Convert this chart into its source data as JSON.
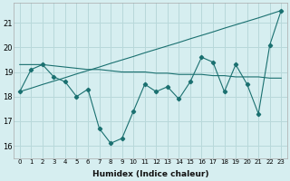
{
  "xlabel": "Humidex (Indice chaleur)",
  "background_color": "#d6eef0",
  "grid_color": "#b8d8da",
  "line_color": "#1a7070",
  "x": [
    0,
    1,
    2,
    3,
    4,
    5,
    6,
    7,
    8,
    9,
    10,
    11,
    12,
    13,
    14,
    15,
    16,
    17,
    18,
    19,
    20,
    21,
    22,
    23
  ],
  "y_main": [
    18.2,
    19.1,
    19.3,
    18.8,
    18.6,
    18.0,
    18.3,
    16.7,
    16.1,
    16.3,
    17.4,
    18.5,
    18.2,
    18.4,
    17.9,
    18.6,
    19.6,
    19.4,
    18.2,
    19.3,
    18.5,
    17.3,
    20.1,
    21.5
  ],
  "y_diagonal": [
    18.2,
    18.34,
    18.49,
    18.63,
    18.77,
    18.92,
    19.06,
    19.2,
    19.35,
    19.49,
    19.63,
    19.78,
    19.92,
    20.06,
    20.2,
    20.35,
    20.49,
    20.63,
    20.78,
    20.92,
    21.06,
    21.2,
    21.35,
    21.5
  ],
  "y_flat": [
    19.3,
    19.3,
    19.3,
    19.25,
    19.2,
    19.15,
    19.1,
    19.1,
    19.05,
    19.0,
    19.0,
    19.0,
    18.95,
    18.95,
    18.9,
    18.9,
    18.9,
    18.85,
    18.85,
    18.8,
    18.8,
    18.8,
    18.75,
    18.75
  ],
  "ylim": [
    15.5,
    21.8
  ],
  "yticks": [
    16,
    17,
    18,
    19,
    20,
    21
  ],
  "xlim": [
    -0.5,
    23.5
  ],
  "xticks": [
    0,
    1,
    2,
    3,
    4,
    5,
    6,
    7,
    8,
    9,
    10,
    11,
    12,
    13,
    14,
    15,
    16,
    17,
    18,
    19,
    20,
    21,
    22,
    23
  ]
}
